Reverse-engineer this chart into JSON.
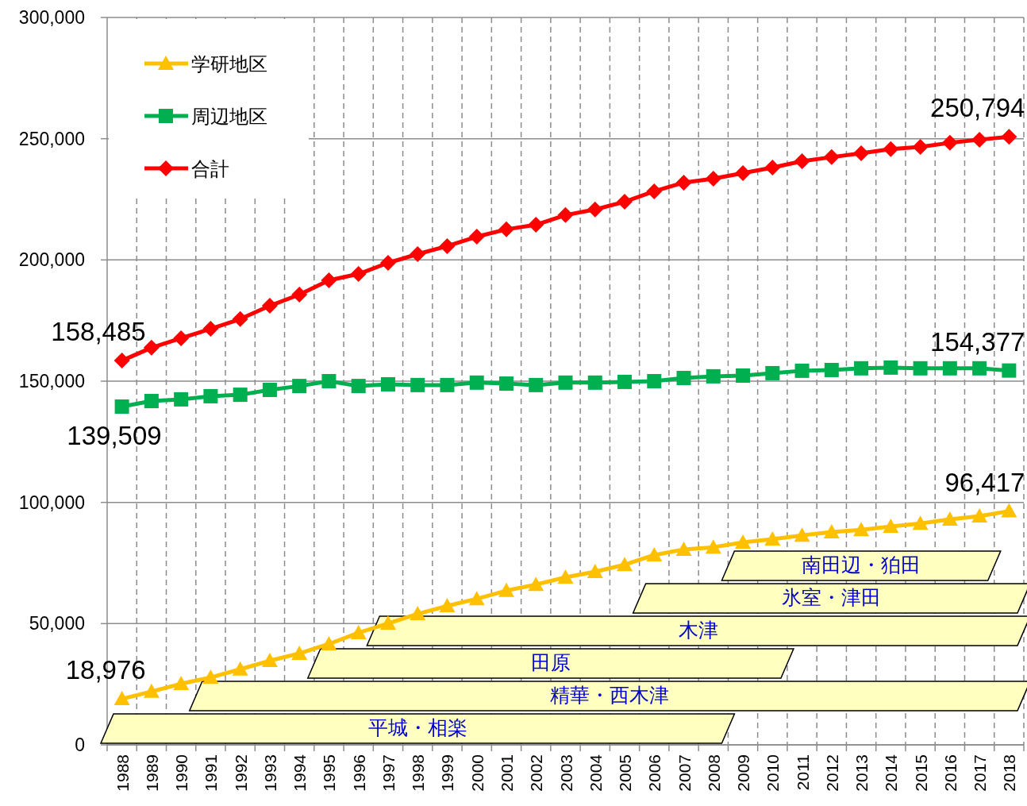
{
  "chart_data": {
    "type": "line",
    "categories": [
      "1988",
      "1989",
      "1990",
      "1991",
      "1992",
      "1993",
      "1994",
      "1995",
      "1996",
      "1997",
      "1998",
      "1999",
      "2000",
      "2001",
      "2002",
      "2003",
      "2004",
      "2005",
      "2006",
      "2007",
      "2008",
      "2009",
      "2010",
      "2011",
      "2012",
      "2013",
      "2014",
      "2015",
      "2016",
      "2017",
      "2018"
    ],
    "series": [
      {
        "name": "学研地区",
        "color": "#ffc000",
        "marker": "triangle",
        "values": [
          18976,
          22000,
          25200,
          27800,
          31200,
          34700,
          37700,
          41600,
          46200,
          50100,
          54000,
          57300,
          60200,
          63600,
          66100,
          69100,
          71400,
          74300,
          78300,
          80600,
          81500,
          83500,
          84800,
          86400,
          87800,
          88700,
          90100,
          91300,
          93000,
          94300,
          96417
        ],
        "value_labels": [
          "18,976",
          null,
          null,
          null,
          null,
          null,
          null,
          null,
          null,
          null,
          null,
          null,
          null,
          null,
          null,
          null,
          null,
          null,
          null,
          null,
          null,
          null,
          null,
          null,
          null,
          null,
          null,
          null,
          null,
          null,
          "96,417"
        ]
      },
      {
        "name": "周辺地区",
        "color": "#00b050",
        "marker": "square",
        "values": [
          139509,
          141800,
          142500,
          143800,
          144400,
          146400,
          148000,
          150000,
          148000,
          148700,
          148400,
          148400,
          149400,
          149000,
          148400,
          149400,
          149400,
          149700,
          150000,
          151300,
          152000,
          152300,
          153300,
          154300,
          154600,
          155300,
          155600,
          155300,
          155300,
          155300,
          154377
        ],
        "value_labels": [
          "139,509",
          null,
          null,
          null,
          null,
          null,
          null,
          null,
          null,
          null,
          null,
          null,
          null,
          null,
          null,
          null,
          null,
          null,
          null,
          null,
          null,
          null,
          null,
          null,
          null,
          null,
          null,
          null,
          null,
          null,
          "154,377"
        ]
      },
      {
        "name": "合計",
        "color": "#ff0000",
        "marker": "diamond",
        "values": [
          158485,
          163800,
          167700,
          171600,
          175600,
          181100,
          185700,
          191600,
          194200,
          198800,
          202400,
          205700,
          209600,
          212600,
          214500,
          218500,
          220800,
          224000,
          228300,
          231900,
          233500,
          235800,
          238100,
          240700,
          242400,
          244000,
          245700,
          246600,
          248300,
          249600,
          250794
        ],
        "value_labels": [
          "158,485",
          null,
          null,
          null,
          null,
          null,
          null,
          null,
          null,
          null,
          null,
          null,
          null,
          null,
          null,
          null,
          null,
          null,
          null,
          null,
          null,
          null,
          null,
          null,
          null,
          null,
          null,
          null,
          null,
          null,
          "250,794"
        ]
      }
    ],
    "ylim": [
      0,
      300000
    ],
    "yticks": [
      {
        "value": 0,
        "label": "0"
      },
      {
        "value": 50000,
        "label": "50,000"
      },
      {
        "value": 100000,
        "label": "100,000"
      },
      {
        "value": 150000,
        "label": "150,000"
      },
      {
        "value": 200000,
        "label": "200,000"
      },
      {
        "value": 250000,
        "label": "250,000"
      },
      {
        "value": 300000,
        "label": "300,000"
      }
    ],
    "grid": true,
    "legend": "top left",
    "bands": [
      {
        "axis": "x",
        "from": "1988",
        "to": "2008",
        "label": "平城・相楽",
        "color": "#ffffc0"
      },
      {
        "axis": "x",
        "from": "1991",
        "to": "2018",
        "label": "精華・西木津",
        "color": "#ffffc0"
      },
      {
        "axis": "x",
        "from": "1995",
        "to": "2010",
        "label": "田原",
        "color": "#ffffc0"
      },
      {
        "axis": "x",
        "from": "1997",
        "to": "2018",
        "label": "木津",
        "color": "#ffffc0"
      },
      {
        "axis": "x",
        "from": "2006",
        "to": "2018",
        "label": "氷室・津田",
        "color": "#ffffc0"
      },
      {
        "axis": "x",
        "from": "2009",
        "to": "2017",
        "label": "南田辺・狛田",
        "color": "#ffffc0"
      }
    ]
  }
}
